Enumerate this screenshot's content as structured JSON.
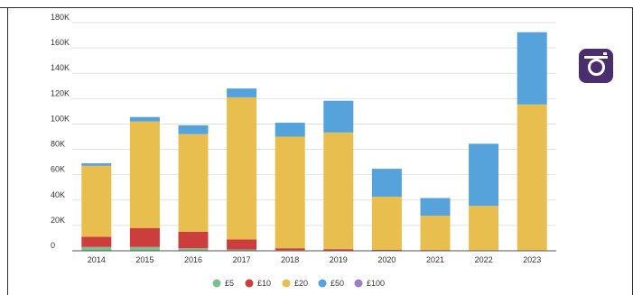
{
  "chart_data": {
    "type": "bar",
    "stacked": true,
    "title": "",
    "xlabel": "",
    "ylabel": "",
    "ylim": [
      0,
      180000
    ],
    "y_ticks": [
      "0",
      "20K",
      "40K",
      "60K",
      "80K",
      "100K",
      "120K",
      "140K",
      "160K",
      "180K"
    ],
    "grid": true,
    "legend_position": "bottom",
    "categories": [
      "2014",
      "2015",
      "2016",
      "2017",
      "2018",
      "2019",
      "2020",
      "2021",
      "2022",
      "2023"
    ],
    "series": [
      {
        "name": "£5",
        "color": "#7cc08e",
        "values": [
          3000,
          3000,
          2000,
          1000,
          500,
          300,
          200,
          100,
          100,
          100
        ]
      },
      {
        "name": "£10",
        "color": "#cc3d3d",
        "values": [
          8000,
          15000,
          13000,
          8000,
          1500,
          1000,
          500,
          500,
          300,
          300
        ]
      },
      {
        "name": "£20",
        "color": "#e8bf4f",
        "values": [
          56000,
          84000,
          77000,
          112000,
          88000,
          92000,
          42000,
          27000,
          35000,
          115000
        ]
      },
      {
        "name": "£50",
        "color": "#56a3dc",
        "values": [
          2000,
          3500,
          7000,
          7000,
          11000,
          25000,
          22000,
          14000,
          49000,
          57000
        ]
      },
      {
        "name": "£100",
        "color": "#a07cc5",
        "values": [
          0,
          0,
          0,
          0,
          0,
          0,
          0,
          0,
          0,
          0
        ]
      }
    ]
  },
  "icons": {
    "social": "instagram-icon"
  }
}
